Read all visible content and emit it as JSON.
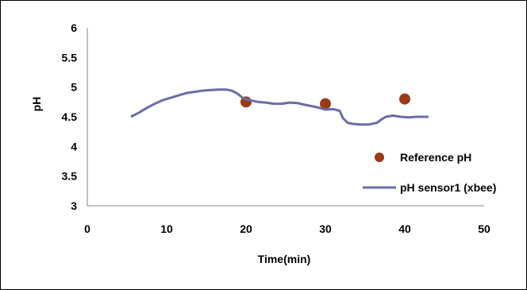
{
  "chart_data": {
    "type": "scatter",
    "title": "",
    "xlabel": "Time(min)",
    "ylabel": "pH",
    "xlim": [
      0,
      50
    ],
    "ylim": [
      3,
      6
    ],
    "x_ticks": [
      "0",
      "10",
      "20",
      "30",
      "40",
      "50"
    ],
    "y_ticks": [
      "3",
      "3.5",
      "4",
      "4.5",
      "5",
      "5.5",
      "6"
    ],
    "grid": false,
    "legend_position": "right",
    "series": [
      {
        "name": "Reference pH",
        "style": "markers",
        "color": "#9b3b16",
        "x": [
          20,
          30,
          40
        ],
        "y": [
          4.75,
          4.72,
          4.8
        ]
      },
      {
        "name": "pH sensor1 (xbee)",
        "style": "line",
        "color": "#6b6ca8",
        "x": [
          5.5,
          6.5,
          7.5,
          8.5,
          9.5,
          10.5,
          11.5,
          12.5,
          13.5,
          14.5,
          15.5,
          16.5,
          17.5,
          18.2,
          18.8,
          19.3,
          19.8,
          20.5,
          21.5,
          22.5,
          23.5,
          24.5,
          25.5,
          26.5,
          27.5,
          28.3,
          29.0,
          30.0,
          31.0,
          31.8,
          32.2,
          32.8,
          33.5,
          34.5,
          35.5,
          36.5,
          37.0,
          37.6,
          38.5,
          39.5,
          40.5,
          41.5,
          42.5,
          43.0
        ],
        "y": [
          4.5,
          4.57,
          4.65,
          4.72,
          4.78,
          4.82,
          4.86,
          4.9,
          4.92,
          4.94,
          4.95,
          4.96,
          4.96,
          4.94,
          4.9,
          4.85,
          4.8,
          4.78,
          4.75,
          4.74,
          4.72,
          4.72,
          4.74,
          4.73,
          4.7,
          4.68,
          4.66,
          4.62,
          4.63,
          4.6,
          4.48,
          4.4,
          4.38,
          4.37,
          4.37,
          4.4,
          4.45,
          4.5,
          4.52,
          4.5,
          4.49,
          4.5,
          4.5,
          4.5
        ]
      }
    ]
  }
}
